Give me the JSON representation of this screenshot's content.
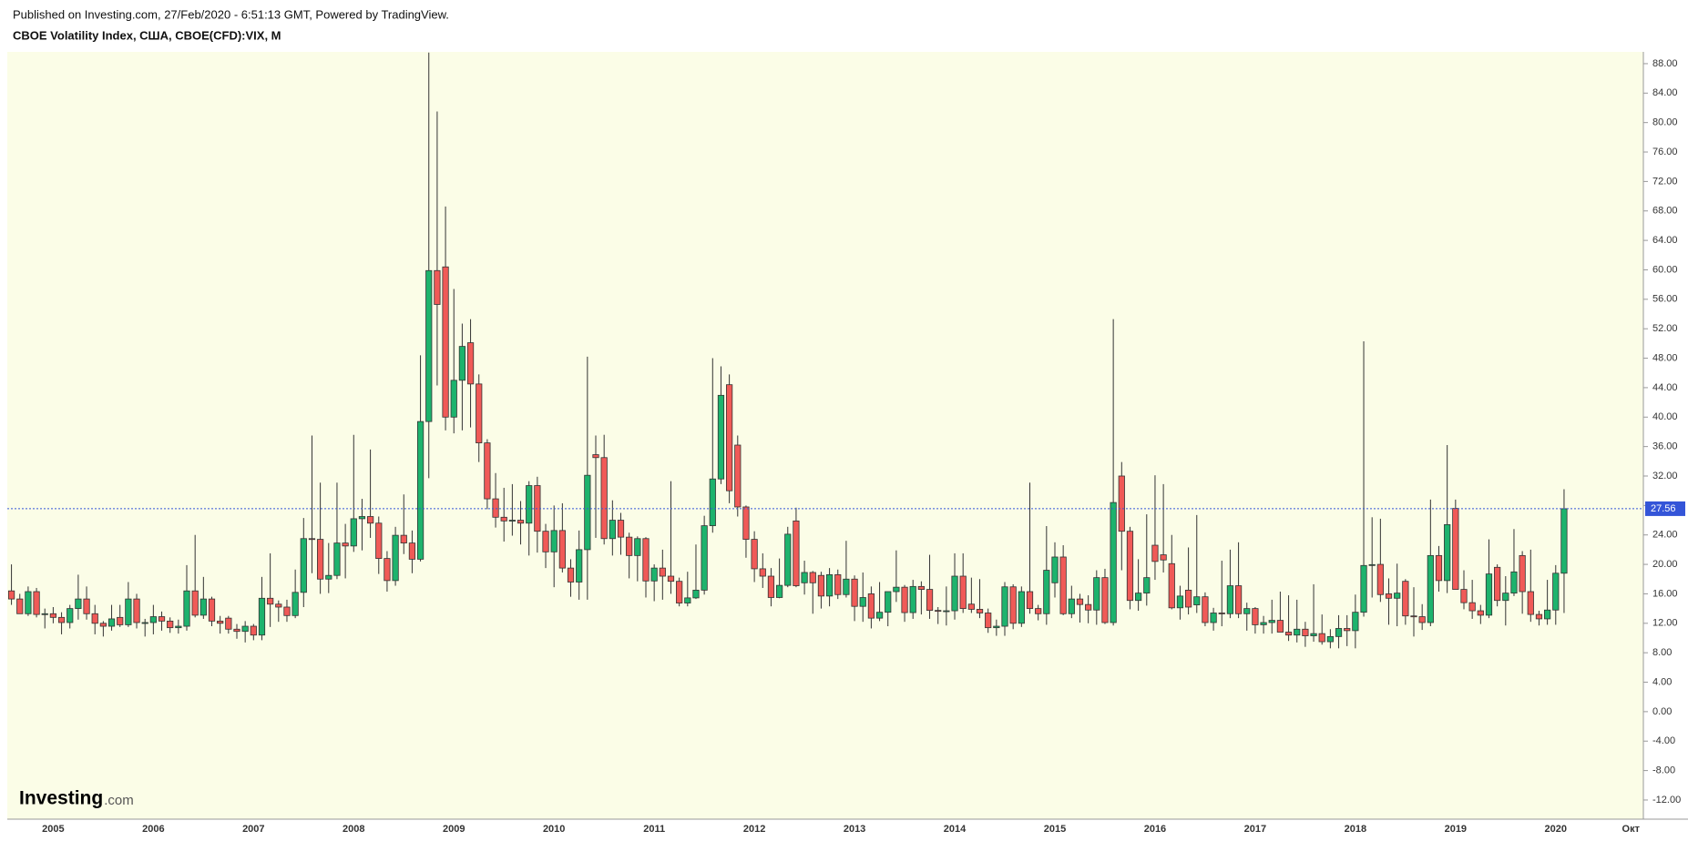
{
  "header": {
    "published": "Published on Investing.com, 27/Feb/2020 - 6:51:13 GMT, Powered by TradingView.",
    "symbol": "CBOE Volatility Index, США, CBOE(CFD):VIX, M"
  },
  "logo": {
    "name": "Investing",
    "suffix": ".com"
  },
  "chart_data": {
    "type": "candlestick",
    "categories": [
      null,
      null,
      null,
      null,
      null,
      "2005",
      null,
      null,
      null,
      null,
      null,
      null,
      null,
      null,
      null,
      null,
      null,
      "2006",
      null,
      null,
      null,
      null,
      null,
      null,
      null,
      null,
      null,
      null,
      null,
      "2007",
      null,
      null,
      null,
      null,
      null,
      null,
      null,
      null,
      null,
      null,
      null,
      "2008",
      null,
      null,
      null,
      null,
      null,
      null,
      null,
      null,
      null,
      null,
      null,
      "2009",
      null,
      null,
      null,
      null,
      null,
      null,
      null,
      null,
      null,
      null,
      null,
      "2010",
      null,
      null,
      null,
      null,
      null,
      null,
      null,
      null,
      null,
      null,
      null,
      "2011",
      null,
      null,
      null,
      null,
      null,
      null,
      null,
      null,
      null,
      null,
      null,
      "2012",
      null,
      null,
      null,
      null,
      null,
      null,
      null,
      null,
      null,
      null,
      null,
      "2013",
      null,
      null,
      null,
      null,
      null,
      null,
      null,
      null,
      null,
      null,
      null,
      "2014",
      null,
      null,
      null,
      null,
      null,
      null,
      null,
      null,
      null,
      null,
      null,
      "2015",
      null,
      null,
      null,
      null,
      null,
      null,
      null,
      null,
      null,
      null,
      null,
      "2016",
      null,
      null,
      null,
      null,
      null,
      null,
      null,
      null,
      null,
      null,
      null,
      "2017",
      null,
      null,
      null,
      null,
      null,
      null,
      null,
      null,
      null,
      null,
      null,
      "2018",
      null,
      null,
      null,
      null,
      null,
      null,
      null,
      null,
      null,
      null,
      null,
      "2019",
      null,
      null,
      null,
      null,
      null,
      null,
      null,
      null,
      null,
      null,
      null,
      "2020",
      null,
      null,
      null,
      null,
      null,
      null,
      null,
      null,
      "Окт",
      null
    ],
    "open": [
      16.4,
      15.3,
      13.3,
      16.3,
      13.2,
      13.3,
      12.8,
      12.1,
      14,
      15.3,
      13.3,
      12,
      11.6,
      12.8,
      11.8,
      15.3,
      12.1,
      12.1,
      12.9,
      12.3,
      11.4,
      11.6,
      16.4,
      13.1,
      15.3,
      12.3,
      12.7,
      11.2,
      10.9,
      11.6,
      10.4,
      15.4,
      14.6,
      14.2,
      13.05,
      16.2,
      23.5,
      23.4,
      18,
      18.5,
      22.9,
      22.5,
      26.2,
      26.5,
      25.6,
      20.8,
      17.8,
      23.95,
      22.9,
      20.7,
      39.4,
      59.9,
      60.4,
      40,
      45,
      50.1,
      44.5,
      36.5,
      28.9,
      26.4,
      25.9,
      26,
      25.6,
      30.7,
      24.5,
      21.7,
      24.6,
      19.5,
      17.6,
      22,
      34.9,
      34.5,
      23.5,
      26,
      23.7,
      21.2,
      23.5,
      17.75,
      19.5,
      18.4,
      17.7,
      14.75,
      15.45,
      16.5,
      25.25,
      31.6,
      44.4,
      36.2,
      27.8,
      23.4,
      19.4,
      18.4,
      15.5,
      17.15,
      25.9,
      17.5,
      18.9,
      18.5,
      15.7,
      18.6,
      15.9,
      18,
      14.3,
      16,
      12.7,
      13.5,
      16.3,
      16.9,
      13.45,
      17,
      16.6,
      13.75,
      13.7,
      13.7,
      18.4,
      14.6,
      13.9,
      13.4,
      11.4,
      11.6,
      16.95,
      12,
      16.3,
      14,
      13.3,
      17.5,
      21,
      13.3,
      15.3,
      14.55,
      13.8,
      18.2,
      12.1,
      32,
      24.5,
      15.1,
      16.1,
      22.6,
      21.3,
      20.1,
      14.1,
      16.5,
      14.5,
      15.6,
      12.1,
      13.4,
      13.3,
      17.1,
      13.3,
      14,
      11.8,
      12.1,
      12.4,
      10.8,
      10.4,
      11.2,
      10.3,
      10.6,
      9.5,
      10.2,
      11.3,
      11,
      13.5,
      19.85,
      20,
      16,
      15.4,
      17.7,
      13,
      12.9,
      12.1,
      21.2,
      17.8,
      27.6,
      16.6,
      14.8,
      13.7,
      13.1,
      19.6,
      15.1,
      16.1,
      21.2,
      16.3,
      13.2,
      12.6,
      13.8,
      18.8,
      null,
      null,
      null,
      null,
      null,
      null,
      null,
      null,
      null
    ],
    "high": [
      20,
      16,
      17,
      16.8,
      14,
      14.2,
      13.5,
      14.5,
      18.6,
      17,
      14.5,
      12.3,
      14.5,
      14.5,
      17.6,
      16,
      12.6,
      14.5,
      13.6,
      12.8,
      12.5,
      19.9,
      24,
      18.3,
      15.6,
      13,
      13,
      11.9,
      12.3,
      11.9,
      18.3,
      21.5,
      15.1,
      15.2,
      19.3,
      26.3,
      37.5,
      31.1,
      22.9,
      31.1,
      25.5,
      37.6,
      28.9,
      35.6,
      26.5,
      21.8,
      25.1,
      29.5,
      24.6,
      48.4,
      89.5,
      81.5,
      68.6,
      57.4,
      52.7,
      53.3,
      45.8,
      37,
      32.4,
      30.4,
      30.9,
      28.6,
      31.3,
      31.9,
      25.5,
      28,
      28.3,
      20.7,
      24.6,
      48.2,
      37.5,
      37.6,
      28.7,
      27,
      24.3,
      23.8,
      23.7,
      20,
      22,
      31.3,
      18.2,
      19,
      22.7,
      26.6,
      48,
      46.9,
      45.8,
      37.5,
      28,
      24.5,
      21.5,
      19.5,
      20.8,
      25.1,
      27.7,
      20.5,
      19.1,
      19,
      19.5,
      19.3,
      23.2,
      18.5,
      18.9,
      17,
      17.6,
      16.3,
      21.9,
      17.2,
      17.9,
      17.7,
      21.3,
      14.2,
      17,
      21.5,
      21.5,
      18.2,
      18,
      14,
      12.5,
      17.6,
      17.3,
      17,
      31.1,
      14.5,
      25.2,
      23,
      22.6,
      17.1,
      16,
      15.8,
      19.2,
      19.4,
      53.3,
      33.9,
      25.1,
      20.7,
      26.8,
      32.1,
      30.9,
      24,
      17.1,
      22.3,
      26.7,
      16.2,
      14.1,
      20.5,
      22,
      23,
      14.8,
      14.2,
      13,
      15.2,
      16.3,
      15.8,
      15.2,
      12.2,
      17.3,
      13.2,
      11.2,
      13.1,
      13.1,
      15.9,
      50.3,
      26.4,
      26.2,
      18.1,
      20.1,
      18,
      16.9,
      14.6,
      28.8,
      22.5,
      36.2,
      28.8,
      19.2,
      17.9,
      14.5,
      23.4,
      20,
      18.4,
      24.8,
      21.8,
      22,
      13.7,
      17.9,
      19.9,
      30.2,
      null,
      null,
      null,
      null,
      null,
      null,
      null,
      null,
      null
    ],
    "low": [
      14.5,
      13.3,
      13,
      12.8,
      11.3,
      12,
      10.5,
      11.3,
      12.5,
      12.5,
      10.5,
      10.2,
      11,
      11.5,
      11.5,
      11.3,
      10.2,
      10.5,
      11,
      10.7,
      10.6,
      11,
      12.8,
      12.6,
      11.6,
      10.6,
      10.6,
      9.9,
      9.4,
      9.7,
      9.7,
      11.5,
      12.2,
      12.2,
      12.7,
      14.2,
      18.8,
      16,
      16.1,
      18,
      18.1,
      21.7,
      21.9,
      23.6,
      18.7,
      16.3,
      17.1,
      21.4,
      18.8,
      20.4,
      31.7,
      44.3,
      38.2,
      37.8,
      38.2,
      38.6,
      33.9,
      27.5,
      25,
      23.1,
      23.9,
      22.7,
      21.2,
      21.6,
      19.5,
      16.9,
      18.9,
      15.6,
      15.2,
      15.2,
      23.6,
      22.7,
      21.2,
      21.3,
      18.1,
      17.7,
      15.5,
      15,
      15.2,
      16,
      14.3,
      14.3,
      15.3,
      15.9,
      24.3,
      30.9,
      28.3,
      26.5,
      20.9,
      17.6,
      16.8,
      14.3,
      15.4,
      16.9,
      16.9,
      15.9,
      13.3,
      14,
      14.3,
      15.3,
      15.5,
      12.3,
      12.2,
      11.3,
      12.3,
      11.6,
      14.9,
      12.2,
      12.6,
      13.2,
      12.6,
      11.9,
      11.7,
      12.5,
      13.4,
      13.4,
      12.7,
      10.7,
      10.3,
      10.3,
      11.2,
      11.5,
      13.3,
      12.4,
      11.8,
      15.5,
      13.1,
      12.7,
      12.1,
      12,
      11.8,
      11.9,
      11.7,
      19.2,
      13.9,
      13.7,
      14.4,
      17.9,
      18.9,
      13.9,
      12.5,
      13.2,
      13.4,
      11.6,
      11,
      11.6,
      12.7,
      12.7,
      11,
      10.6,
      10.6,
      10.6,
      10.8,
      9.6,
      9.4,
      8.8,
      9.5,
      9.1,
      8.6,
      8.6,
      8.9,
      8.6,
      12.9,
      15.5,
      14.9,
      11.8,
      11.6,
      11.8,
      10.2,
      11.1,
      11.6,
      16.3,
      16.1,
      16.7,
      13.9,
      12.6,
      11.9,
      12.7,
      14.3,
      11.7,
      15.7,
      13.3,
      12.2,
      11.7,
      11.8,
      11.8,
      13.4,
      null,
      null,
      null,
      null,
      null,
      null,
      null,
      null,
      null
    ],
    "close": [
      15.3,
      13.3,
      16.3,
      13.2,
      13.3,
      12.8,
      12.1,
      14,
      15.3,
      13.3,
      12,
      11.6,
      12.6,
      11.8,
      15.3,
      12.1,
      12.1,
      12.9,
      12.3,
      11.4,
      11.6,
      16.4,
      13.1,
      15.3,
      12.3,
      12,
      11.2,
      10.9,
      11.6,
      10.4,
      15.4,
      14.6,
      14.2,
      13.05,
      16.2,
      23.5,
      23.4,
      18,
      18.5,
      22.9,
      22.5,
      26.2,
      26.5,
      25.6,
      20.8,
      17.8,
      23.95,
      22.9,
      20.7,
      39.4,
      59.9,
      55.3,
      40,
      45,
      49.6,
      44.5,
      36.5,
      28.9,
      26.4,
      25.9,
      26,
      25.6,
      30.7,
      24.5,
      21.7,
      24.6,
      19.5,
      17.6,
      22,
      32.1,
      34.5,
      23.5,
      26,
      23.7,
      21.2,
      23.5,
      17.75,
      19.5,
      18.4,
      17.7,
      14.75,
      15.45,
      16.5,
      25.25,
      31.6,
      42.96,
      30,
      27.8,
      23.4,
      19.4,
      18.4,
      15.5,
      17.15,
      24.1,
      17.1,
      18.9,
      17.5,
      15.7,
      18.6,
      15.9,
      18,
      14.3,
      15.5,
      12.7,
      13.5,
      16.3,
      16.9,
      13.45,
      17,
      16.6,
      13.75,
      13.7,
      13.7,
      18.4,
      14,
      13.9,
      13.4,
      11.4,
      11.6,
      16.95,
      12,
      16.3,
      14,
      13.3,
      19.2,
      21,
      13.3,
      15.3,
      14.55,
      13.8,
      18.2,
      12.1,
      28.4,
      24.5,
      15.1,
      16.1,
      18.2,
      20.4,
      20.6,
      14.1,
      15.7,
      14.2,
      15.6,
      12.1,
      13.4,
      13.3,
      17.1,
      13.3,
      14,
      11.8,
      12.1,
      12.4,
      10.8,
      10.4,
      11.2,
      10.3,
      10.6,
      9.5,
      10.2,
      11.3,
      11,
      13.5,
      19.85,
      19.97,
      15.9,
      15.4,
      16.1,
      13,
      12.9,
      12.1,
      21.2,
      17.8,
      25.4,
      16.6,
      14.8,
      13.7,
      13.1,
      18.7,
      15.1,
      16.1,
      18.98,
      16.3,
      13.2,
      12.6,
      13.8,
      18.8,
      27.56,
      null,
      null,
      null,
      null,
      null,
      null,
      null,
      null,
      null
    ],
    "up_color": "#1db36d",
    "down_color": "#f05a57",
    "wick_color": "#333333",
    "last_value": {
      "value": 27.56,
      "label": "27.56"
    },
    "last_value_color": "#3455d8",
    "ylim": [
      -14.6,
      89.6
    ],
    "yticks": [
      {
        "value": 88,
        "label": "88.00"
      },
      {
        "value": 84,
        "label": "84.00"
      },
      {
        "value": 80,
        "label": "80.00"
      },
      {
        "value": 76,
        "label": "76.00"
      },
      {
        "value": 72,
        "label": "72.00"
      },
      {
        "value": 68,
        "label": "68.00"
      },
      {
        "value": 64,
        "label": "64.00"
      },
      {
        "value": 60,
        "label": "60.00"
      },
      {
        "value": 56,
        "label": "56.00"
      },
      {
        "value": 52,
        "label": "52.00"
      },
      {
        "value": 48,
        "label": "48.00"
      },
      {
        "value": 44,
        "label": "44.00"
      },
      {
        "value": 40,
        "label": "40.00"
      },
      {
        "value": 36,
        "label": "36.00"
      },
      {
        "value": 32,
        "label": "32.00"
      },
      {
        "value": 28,
        "label": "28.00"
      },
      {
        "value": 24,
        "label": "24.00"
      },
      {
        "value": 20,
        "label": "20.00"
      },
      {
        "value": 16,
        "label": "16.00"
      },
      {
        "value": 12,
        "label": "12.00"
      },
      {
        "value": 8,
        "label": "8.00"
      },
      {
        "value": 4,
        "label": "4.00"
      },
      {
        "value": 0,
        "label": "0.00"
      },
      {
        "value": -4,
        "label": "-4.00"
      },
      {
        "value": -8,
        "label": "-8.00"
      },
      {
        "value": -12,
        "label": "-12.00"
      }
    ],
    "grid": false
  }
}
